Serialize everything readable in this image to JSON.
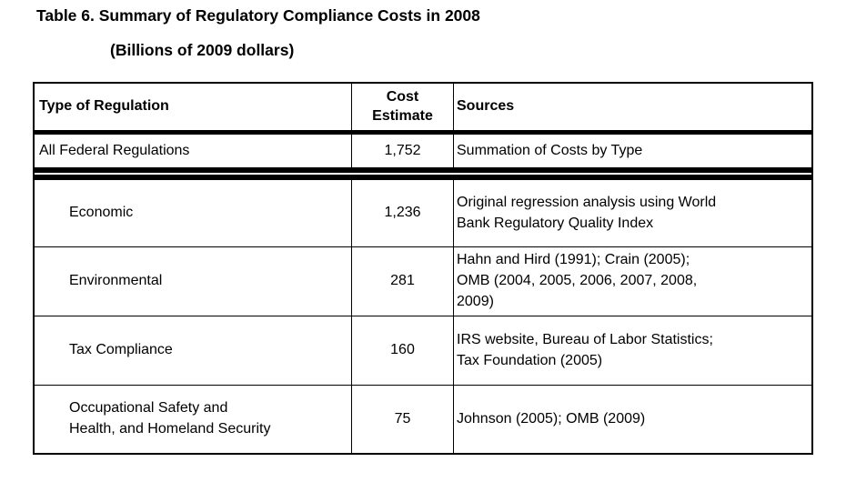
{
  "page": {
    "title": "Table 6. Summary of Regulatory Compliance Costs in 2008",
    "subtitle": "(Billions of 2009 dollars)"
  },
  "table": {
    "headers": {
      "type": "Type of Regulation",
      "cost": "Cost\nEstimate",
      "sources": "Sources"
    },
    "summary_row": {
      "type": "All Federal Regulations",
      "cost": "1,752",
      "sources": "Summation of Costs by Type"
    },
    "rows": [
      {
        "type": "Economic",
        "cost": "1,236",
        "sources": "Original regression analysis using World\nBank Regulatory Quality Index"
      },
      {
        "type": "Environmental",
        "cost": "281",
        "sources": "Hahn and Hird (1991); Crain (2005);\nOMB (2004, 2005, 2006, 2007, 2008,\n2009)"
      },
      {
        "type": "Tax Compliance",
        "cost": "160",
        "sources": "IRS website, Bureau of Labor Statistics;\nTax Foundation (2005)"
      },
      {
        "type": "Occupational Safety and\nHealth, and Homeland Security",
        "cost": "75",
        "sources": "Johnson (2005); OMB (2009)"
      }
    ]
  },
  "chart_data": {
    "type": "table",
    "title": "Table 6. Summary of Regulatory Compliance Costs in 2008 (Billions of 2009 dollars)",
    "columns": [
      "Type of Regulation",
      "Cost Estimate",
      "Sources"
    ],
    "rows": [
      [
        "All Federal Regulations",
        1752,
        "Summation of Costs by Type"
      ],
      [
        "Economic",
        1236,
        "Original regression analysis using World Bank Regulatory Quality Index"
      ],
      [
        "Environmental",
        281,
        "Hahn and Hird (1991); Crain (2005); OMB (2004, 2005, 2006, 2007, 2008, 2009)"
      ],
      [
        "Tax Compliance",
        160,
        "IRS website, Bureau of Labor Statistics; Tax Foundation (2005)"
      ],
      [
        "Occupational Safety and Health, and Homeland Security",
        75,
        "Johnson (2005); OMB (2009)"
      ]
    ]
  }
}
